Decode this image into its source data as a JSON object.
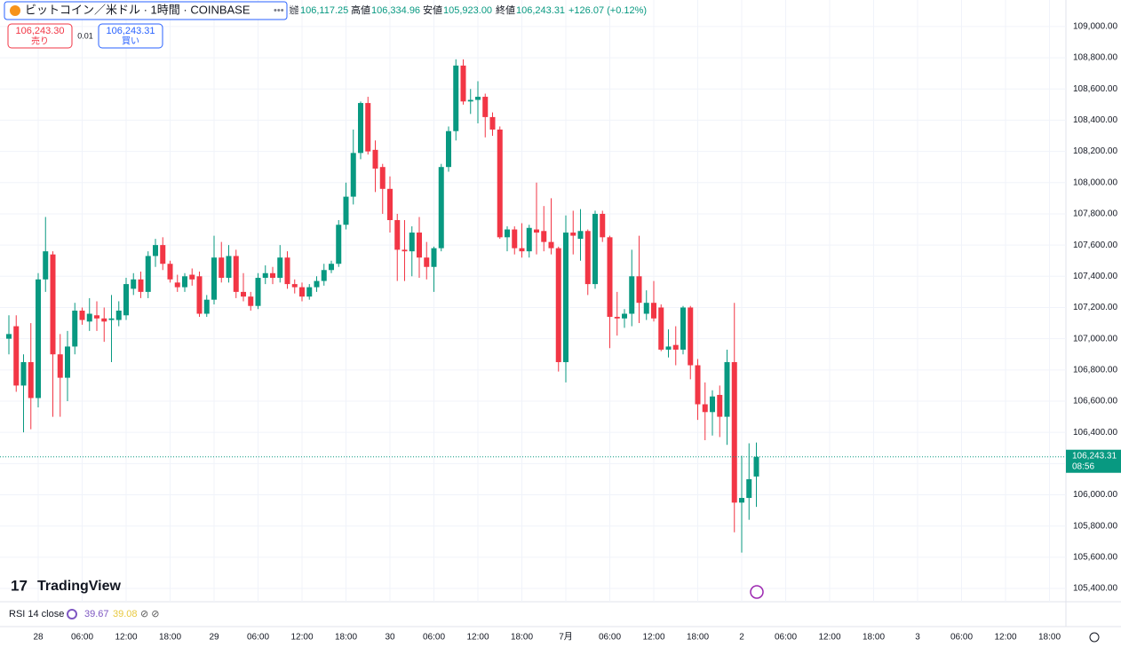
{
  "header": {
    "symbol": "ビットコイン／米ドル · 1時間 · COINBASE",
    "open_label": "始値",
    "open": "106,117.25",
    "high_label": "高値",
    "high": "106,334.96",
    "low_label": "安値",
    "low": "105,923.00",
    "close_label": "終値",
    "close": "106,243.31",
    "change": "+126.07 (+0.12%)",
    "sell_price": "106,243.30",
    "sell_label": "売り",
    "spread": "0.01",
    "buy_price": "106,243.31",
    "buy_label": "買い",
    "countdown": "08:56",
    "logo": "TradingView",
    "indicator": "RSI 14 close",
    "rsi_value": "39.67",
    "rsi_ma": "39.08"
  },
  "chart_data": {
    "type": "candlestick",
    "up_color": "#089981",
    "down_color": "#f23645",
    "candles": [
      [
        107000,
        107150,
        106900,
        107030
      ],
      [
        107080,
        107150,
        106660,
        106700
      ],
      [
        106700,
        106900,
        106400,
        106850
      ],
      [
        106850,
        107100,
        106420,
        106620
      ],
      [
        106620,
        107420,
        106560,
        107380
      ],
      [
        107380,
        107780,
        107300,
        107560
      ],
      [
        107540,
        107560,
        106500,
        106900
      ],
      [
        106900,
        107030,
        106500,
        106750
      ],
      [
        106750,
        107050,
        106600,
        106950
      ],
      [
        106950,
        107230,
        106900,
        107180
      ],
      [
        107180,
        107200,
        107090,
        107120
      ],
      [
        107110,
        107260,
        107050,
        107160
      ],
      [
        107150,
        107240,
        107050,
        107130
      ],
      [
        107130,
        107200,
        106980,
        107110
      ],
      [
        107120,
        107280,
        106850,
        107130
      ],
      [
        107120,
        107240,
        107080,
        107180
      ],
      [
        107150,
        107390,
        107120,
        107350
      ],
      [
        107320,
        107420,
        107280,
        107380
      ],
      [
        107380,
        107430,
        107260,
        107300
      ],
      [
        107300,
        107560,
        107260,
        107530
      ],
      [
        107530,
        107640,
        107460,
        107600
      ],
      [
        107600,
        107650,
        107440,
        107480
      ],
      [
        107480,
        107500,
        107360,
        107380
      ],
      [
        107360,
        107410,
        107300,
        107330
      ],
      [
        107330,
        107420,
        107300,
        107400
      ],
      [
        107410,
        107450,
        107340,
        107380
      ],
      [
        107400,
        107430,
        107140,
        107160
      ],
      [
        107160,
        107280,
        107140,
        107250
      ],
      [
        107250,
        107660,
        107220,
        107520
      ],
      [
        107520,
        107620,
        107360,
        107390
      ],
      [
        107390,
        107600,
        107360,
        107530
      ],
      [
        107530,
        107570,
        107260,
        107300
      ],
      [
        107300,
        107420,
        107240,
        107270
      ],
      [
        107270,
        107300,
        107180,
        107210
      ],
      [
        107210,
        107420,
        107190,
        107390
      ],
      [
        107390,
        107470,
        107350,
        107420
      ],
      [
        107420,
        107460,
        107350,
        107390
      ],
      [
        107390,
        107600,
        107360,
        107520
      ],
      [
        107520,
        107560,
        107320,
        107350
      ],
      [
        107350,
        107380,
        107290,
        107330
      ],
      [
        107330,
        107360,
        107240,
        107270
      ],
      [
        107270,
        107350,
        107250,
        107330
      ],
      [
        107330,
        107400,
        107300,
        107370
      ],
      [
        107370,
        107480,
        107340,
        107440
      ],
      [
        107440,
        107500,
        107420,
        107480
      ],
      [
        107480,
        107760,
        107460,
        107730
      ],
      [
        107730,
        108000,
        107700,
        107910
      ],
      [
        107910,
        108340,
        107860,
        108190
      ],
      [
        108190,
        108520,
        108150,
        108510
      ],
      [
        108510,
        108550,
        108180,
        108200
      ],
      [
        108210,
        108270,
        107940,
        108090
      ],
      [
        108100,
        108120,
        107800,
        107960
      ],
      [
        107960,
        108040,
        107680,
        107760
      ],
      [
        107760,
        107800,
        107370,
        107570
      ],
      [
        107570,
        107760,
        107370,
        107560
      ],
      [
        107560,
        107720,
        107400,
        107680
      ],
      [
        107680,
        107780,
        107390,
        107520
      ],
      [
        107520,
        107620,
        107380,
        107460
      ],
      [
        107460,
        107590,
        107300,
        107580
      ],
      [
        107580,
        108120,
        107560,
        108100
      ],
      [
        108100,
        108360,
        108070,
        108330
      ],
      [
        108330,
        108790,
        108270,
        108750
      ],
      [
        108750,
        108790,
        108500,
        108520
      ],
      [
        108520,
        108600,
        108440,
        108530
      ],
      [
        108530,
        108650,
        108380,
        108550
      ],
      [
        108550,
        108570,
        108290,
        108420
      ],
      [
        108420,
        108450,
        108300,
        108340
      ],
      [
        108340,
        108360,
        107640,
        107650
      ],
      [
        107650,
        107720,
        107560,
        107700
      ],
      [
        107700,
        107720,
        107540,
        107580
      ],
      [
        107580,
        107740,
        107520,
        107560
      ],
      [
        107560,
        107730,
        107520,
        107710
      ],
      [
        107700,
        108000,
        107540,
        107680
      ],
      [
        107690,
        107850,
        107560,
        107620
      ],
      [
        107620,
        107900,
        107540,
        107580
      ],
      [
        107580,
        107590,
        106790,
        106850
      ],
      [
        106850,
        107790,
        106720,
        107680
      ],
      [
        107680,
        107820,
        107540,
        107660
      ],
      [
        107640,
        107830,
        107500,
        107690
      ],
      [
        107690,
        107700,
        107280,
        107350
      ],
      [
        107350,
        107820,
        107320,
        107800
      ],
      [
        107800,
        107820,
        107620,
        107650
      ],
      [
        107650,
        107660,
        106940,
        107140
      ],
      [
        107140,
        107300,
        107020,
        107130
      ],
      [
        107130,
        107190,
        107070,
        107160
      ],
      [
        107160,
        107570,
        107080,
        107400
      ],
      [
        107400,
        107660,
        107100,
        107230
      ],
      [
        107160,
        107310,
        107120,
        107230
      ],
      [
        107230,
        107370,
        107110,
        107130
      ],
      [
        107200,
        107220,
        106920,
        106930
      ],
      [
        106930,
        107060,
        106880,
        106950
      ],
      [
        106960,
        107080,
        106830,
        106930
      ],
      [
        106930,
        107210,
        106900,
        107200
      ],
      [
        107200,
        107210,
        106740,
        106830
      ],
      [
        106830,
        106870,
        106480,
        106580
      ],
      [
        106580,
        106720,
        106350,
        106530
      ],
      [
        106530,
        106670,
        106380,
        106630
      ],
      [
        106640,
        106700,
        106370,
        106500
      ],
      [
        106500,
        106930,
        106320,
        106850
      ],
      [
        106850,
        107230,
        105760,
        105950
      ],
      [
        105950,
        106250,
        105630,
        105980
      ],
      [
        105980,
        106330,
        105840,
        106100
      ],
      [
        106117.25,
        106334.96,
        105923,
        106243.31
      ]
    ],
    "xticks": [
      "28",
      "06:00",
      "12:00",
      "18:00",
      "29",
      "06:00",
      "12:00",
      "18:00",
      "30",
      "06:00",
      "12:00",
      "18:00",
      "7月",
      "06:00",
      "12:00",
      "18:00",
      "2",
      "06:00",
      "12:00",
      "18:00",
      "3",
      "06:00",
      "12:00",
      "18:00"
    ],
    "ylim": [
      105315,
      109170
    ],
    "yticks": [
      {
        "value": 105400,
        "label": "105,400.00"
      },
      {
        "value": 105600,
        "label": "105,600.00"
      },
      {
        "value": 105800,
        "label": "105,800.00"
      },
      {
        "value": 106000,
        "label": "106,000.00"
      },
      {
        "value": 106200,
        "label": "106,200.00"
      },
      {
        "value": 106400,
        "label": "106,400.00"
      },
      {
        "value": 106600,
        "label": "106,600.00"
      },
      {
        "value": 106800,
        "label": "106,800.00"
      },
      {
        "value": 107000,
        "label": "107,000.00"
      },
      {
        "value": 107200,
        "label": "107,200.00"
      },
      {
        "value": 107400,
        "label": "107,400.00"
      },
      {
        "value": 107600,
        "label": "107,600.00"
      },
      {
        "value": 107800,
        "label": "107,800.00"
      },
      {
        "value": 108000,
        "label": "108,000.00"
      },
      {
        "value": 108200,
        "label": "108,200.00"
      },
      {
        "value": 108400,
        "label": "108,400.00"
      },
      {
        "value": 108600,
        "label": "108,600.00"
      },
      {
        "value": 108800,
        "label": "108,800.00"
      },
      {
        "value": 109000,
        "label": "109,000.00"
      }
    ],
    "grid": true,
    "last_price": {
      "value": 106243.31,
      "label": "106,243.31"
    }
  }
}
